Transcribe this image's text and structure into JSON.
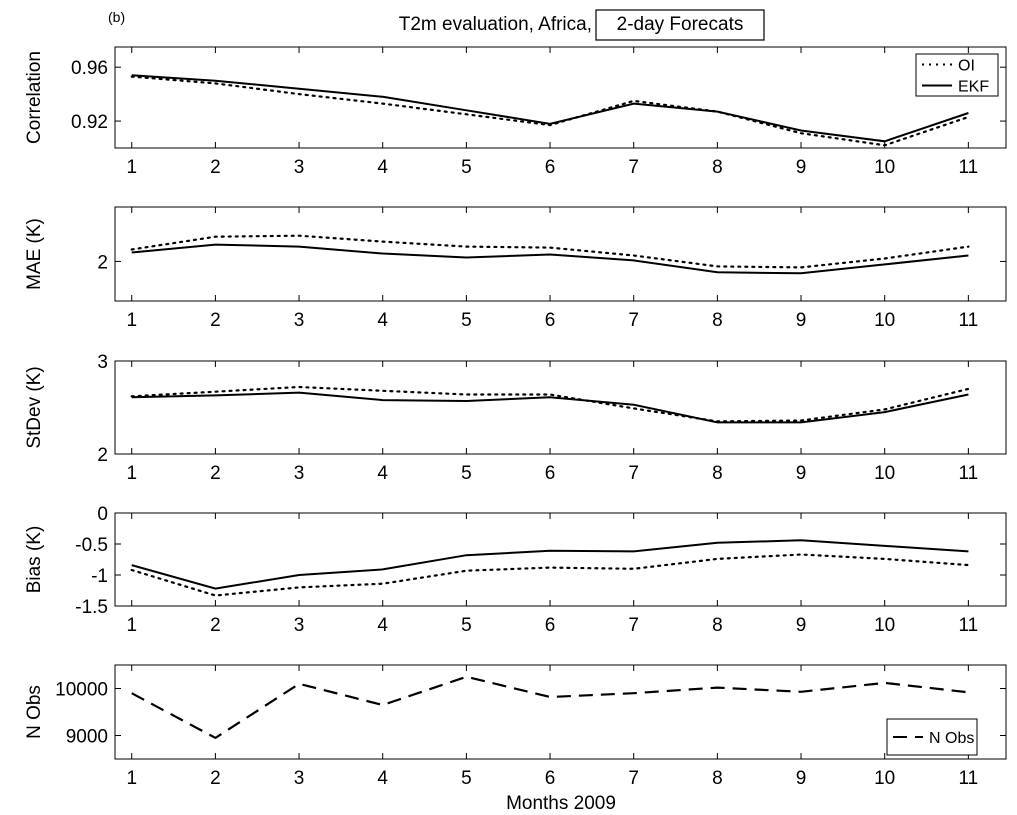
{
  "figure": {
    "panel_label": "(b)",
    "title_prefix": "T2m evaluation, Africa,",
    "title_boxed": "2-day Forecats",
    "xlabel": "Months 2009"
  },
  "chart_data": [
    {
      "type": "line",
      "ylabel": "Correlation",
      "x": [
        1,
        2,
        3,
        4,
        5,
        6,
        7,
        8,
        9,
        10,
        11
      ],
      "ylim": [
        0.9,
        0.975
      ],
      "yticks": [
        0.92,
        0.96
      ],
      "ytick_labels": [
        "0.92",
        "0.96"
      ],
      "xtick_labels": [
        "1",
        "2",
        "3",
        "4",
        "5",
        "6",
        "7",
        "8",
        "9",
        "10",
        "11"
      ],
      "grid": false,
      "legend": "top-right",
      "series": [
        {
          "name": "OI",
          "style": "dotted",
          "values": [
            0.953,
            0.948,
            0.94,
            0.933,
            0.925,
            0.917,
            0.935,
            0.927,
            0.911,
            0.902,
            0.923
          ]
        },
        {
          "name": "EKF",
          "style": "solid",
          "values": [
            0.954,
            0.95,
            0.944,
            0.938,
            0.928,
            0.918,
            0.933,
            0.927,
            0.913,
            0.905,
            0.926
          ]
        }
      ]
    },
    {
      "type": "line",
      "ylabel": "MAE (K)",
      "x": [
        1,
        2,
        3,
        4,
        5,
        6,
        7,
        8,
        9,
        10,
        11
      ],
      "ylim": [
        1.6,
        2.55
      ],
      "yticks": [
        2
      ],
      "ytick_labels": [
        "2"
      ],
      "xtick_labels": [
        "1",
        "2",
        "3",
        "4",
        "5",
        "6",
        "7",
        "8",
        "9",
        "10",
        "11"
      ],
      "grid": false,
      "series": [
        {
          "name": "",
          "style": "dotted",
          "values": [
            2.12,
            2.25,
            2.26,
            2.2,
            2.15,
            2.14,
            2.06,
            1.95,
            1.94,
            2.03,
            2.15
          ]
        },
        {
          "name": "",
          "style": "solid",
          "values": [
            2.09,
            2.17,
            2.15,
            2.08,
            2.04,
            2.07,
            2.01,
            1.89,
            1.88,
            1.97,
            2.06
          ]
        }
      ]
    },
    {
      "type": "line",
      "ylabel": "StDev (K)",
      "x": [
        1,
        2,
        3,
        4,
        5,
        6,
        7,
        8,
        9,
        10,
        11
      ],
      "ylim": [
        2,
        3
      ],
      "yticks": [
        2,
        3
      ],
      "ytick_labels": [
        "2",
        "3"
      ],
      "xtick_labels": [
        "1",
        "2",
        "3",
        "4",
        "5",
        "6",
        "7",
        "8",
        "9",
        "10",
        "11"
      ],
      "grid": false,
      "series": [
        {
          "name": "",
          "style": "dotted",
          "values": [
            2.62,
            2.67,
            2.72,
            2.68,
            2.64,
            2.64,
            2.49,
            2.35,
            2.36,
            2.48,
            2.7
          ]
        },
        {
          "name": "",
          "style": "solid",
          "values": [
            2.61,
            2.63,
            2.66,
            2.58,
            2.57,
            2.61,
            2.53,
            2.34,
            2.34,
            2.45,
            2.64
          ]
        }
      ]
    },
    {
      "type": "line",
      "ylabel": "Bias (K)",
      "x": [
        1,
        2,
        3,
        4,
        5,
        6,
        7,
        8,
        9,
        10,
        11
      ],
      "ylim": [
        -1.5,
        0
      ],
      "yticks": [
        -1.5,
        -1,
        -0.5,
        0
      ],
      "ytick_labels": [
        "-1.5",
        "-1",
        "-0.5",
        "0"
      ],
      "xtick_labels": [
        "1",
        "2",
        "3",
        "4",
        "5",
        "6",
        "7",
        "8",
        "9",
        "10",
        "11"
      ],
      "grid": false,
      "series": [
        {
          "name": "",
          "style": "dotted",
          "values": [
            -0.92,
            -1.33,
            -1.2,
            -1.14,
            -0.93,
            -0.88,
            -0.9,
            -0.74,
            -0.67,
            -0.74,
            -0.84
          ]
        },
        {
          "name": "",
          "style": "solid",
          "values": [
            -0.84,
            -1.22,
            -1.0,
            -0.91,
            -0.68,
            -0.61,
            -0.62,
            -0.48,
            -0.44,
            -0.53,
            -0.62
          ]
        }
      ]
    },
    {
      "type": "line",
      "ylabel": "N Obs",
      "x": [
        1,
        2,
        3,
        4,
        5,
        6,
        7,
        8,
        9,
        10,
        11
      ],
      "ylim": [
        8500,
        10500
      ],
      "yticks": [
        9000,
        10000
      ],
      "ytick_labels": [
        "9000",
        "10000"
      ],
      "xtick_labels": [
        "1",
        "2",
        "3",
        "4",
        "5",
        "6",
        "7",
        "8",
        "9",
        "10",
        "11"
      ],
      "grid": false,
      "legend": "bottom-right",
      "series": [
        {
          "name": "N Obs",
          "style": "dashed",
          "values": [
            9900,
            8950,
            10100,
            9650,
            10250,
            9820,
            9900,
            10020,
            9930,
            10120,
            9920
          ]
        }
      ]
    }
  ]
}
